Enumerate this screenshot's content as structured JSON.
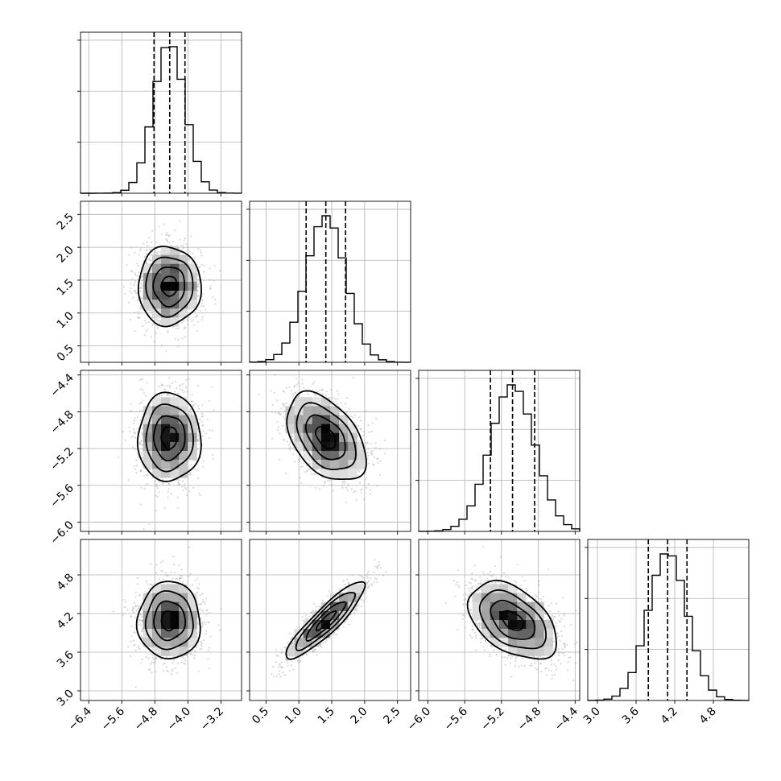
{
  "chart_data": {
    "type": "corner",
    "grid": true,
    "parameters": [
      {
        "mean": -4.45,
        "sd": 0.38,
        "q16": -4.82,
        "q50": -4.44,
        "q84": -4.07,
        "range": [
          -6.6,
          -2.7
        ],
        "ticks": [
          -6.4,
          -5.6,
          -4.8,
          -4.0,
          -3.2
        ],
        "tick_labels": [
          "−6.4",
          "−5.6",
          "−4.8",
          "−4.0",
          "−3.2"
        ]
      },
      {
        "mean": 1.41,
        "sd": 0.3,
        "q16": 1.11,
        "q50": 1.41,
        "q84": 1.71,
        "range": [
          0.25,
          2.7
        ],
        "ticks": [
          0.5,
          1.0,
          1.5,
          2.0,
          2.5
        ],
        "tick_labels": [
          "0.5",
          "1.0",
          "1.5",
          "2.0",
          "2.5"
        ]
      },
      {
        "mean": -5.08,
        "sd": 0.24,
        "q16": -5.32,
        "q50": -5.08,
        "q84": -4.84,
        "range": [
          -6.1,
          -4.35
        ],
        "ticks": [
          -6.0,
          -5.6,
          -5.2,
          -4.8,
          -4.4
        ],
        "tick_labels": [
          "−6.0",
          "−5.6",
          "−5.2",
          "−4.8",
          "−4.4"
        ]
      },
      {
        "mean": 4.09,
        "sd": 0.3,
        "q16": 3.79,
        "q50": 4.09,
        "q84": 4.39,
        "range": [
          2.85,
          5.35
        ],
        "ticks": [
          3.0,
          3.6,
          4.2,
          4.8
        ],
        "tick_labels": [
          "3.0",
          "3.6",
          "4.2",
          "4.8"
        ]
      }
    ],
    "correlations": [
      [
        1.0,
        0.0,
        0.0,
        0.0
      ],
      [
        0.0,
        1.0,
        -0.45,
        0.9
      ],
      [
        0.0,
        -0.45,
        1.0,
        -0.45
      ],
      [
        0.0,
        0.9,
        -0.45,
        1.0
      ]
    ],
    "histogram_bins": 20,
    "contour_levels_sigma": [
      0.5,
      1.0,
      1.5,
      2.0
    ],
    "colors": {
      "ink": "#000000",
      "grid": "#b0b0b0",
      "scatter": "#a9a9a9",
      "background": "#ffffff"
    }
  }
}
